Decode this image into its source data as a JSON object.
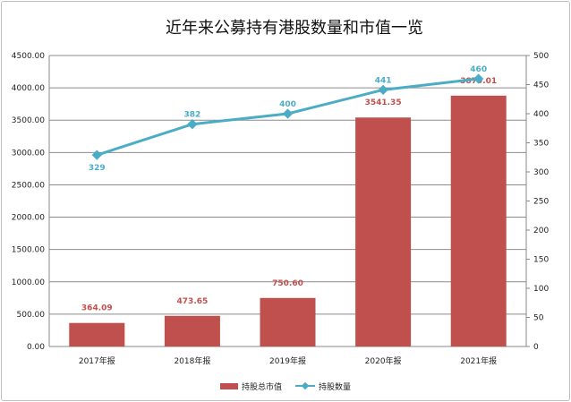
{
  "chart_data": {
    "type": "bar+line",
    "title": "近年来公募持有港股数量和市值一览",
    "categories": [
      "2017年报",
      "2018年报",
      "2019年报",
      "2020年报",
      "2021年报"
    ],
    "series": [
      {
        "name": "持股总市值",
        "type": "bar",
        "axis": "left",
        "values": [
          364.09,
          473.65,
          750.6,
          3541.35,
          3879.01
        ],
        "labels": [
          "364.09",
          "473.65",
          "750.60",
          "3541.35",
          "3879.01"
        ],
        "color": "#c0504d"
      },
      {
        "name": "持股数量",
        "type": "line",
        "axis": "right",
        "values": [
          329,
          382,
          400,
          441,
          460
        ],
        "labels": [
          "329",
          "382",
          "400",
          "441",
          "460"
        ],
        "color": "#4bacc6"
      }
    ],
    "y_left": {
      "range": [
        0,
        4500
      ],
      "ticks": [
        "0.00",
        "500.00",
        "1000.00",
        "1500.00",
        "2000.00",
        "2500.00",
        "3000.00",
        "3500.00",
        "4000.00",
        "4500.00"
      ]
    },
    "y_right": {
      "range": [
        0,
        500
      ],
      "ticks": [
        "0",
        "50",
        "100",
        "150",
        "200",
        "250",
        "300",
        "350",
        "400",
        "450",
        "500"
      ]
    },
    "grid": true,
    "legend": "bottom"
  }
}
